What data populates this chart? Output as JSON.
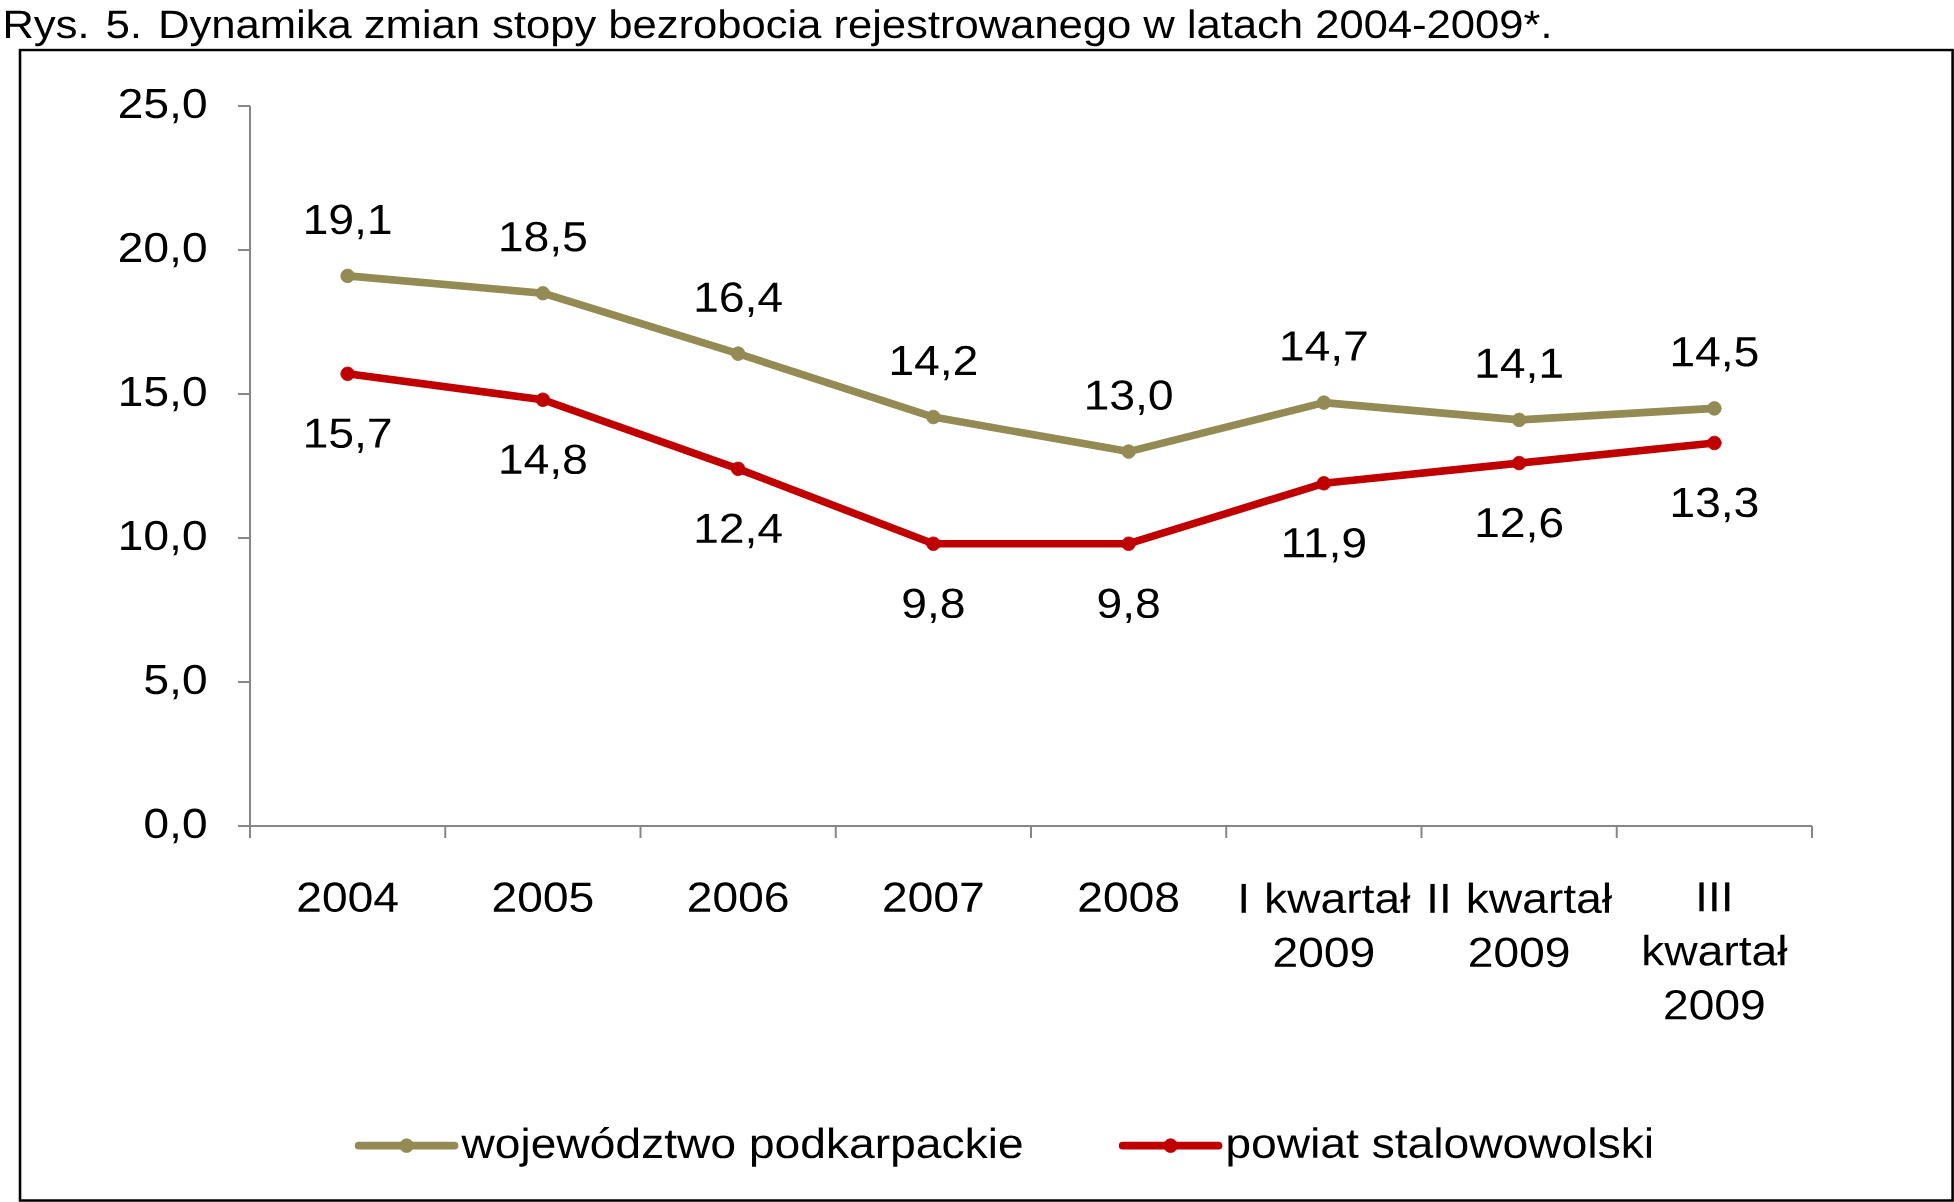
{
  "chart_data": {
    "type": "line",
    "title": "Rys. 5. Dynamika zmian stopy bezrobocia rejestrowanego w latach 2004-2009*.",
    "categories": [
      "2004",
      "2005",
      "2006",
      "2007",
      "2008",
      "I kwartał 2009",
      "II kwartał 2009",
      "III kwartał 2009"
    ],
    "series": [
      {
        "name": "województwo podkarpackie",
        "color": "#948a54",
        "values": [
          19.1,
          18.5,
          16.4,
          14.2,
          13.0,
          14.7,
          14.1,
          14.5
        ],
        "value_labels": [
          "19,1",
          "18,5",
          "16,4",
          "14,2",
          "13,0",
          "14,7",
          "14,1",
          "14,5"
        ]
      },
      {
        "name": "powiat stalowowolski",
        "color": "#c00000",
        "values": [
          15.7,
          14.8,
          12.4,
          9.8,
          9.8,
          11.9,
          12.6,
          13.3
        ],
        "value_labels": [
          "15,7",
          "14,8",
          "12,4",
          "9,8",
          "9,8",
          "11,9",
          "12,6",
          "13,3"
        ]
      }
    ],
    "ylim": [
      0,
      25
    ],
    "yticks": [
      {
        "value": 0,
        "label": "0,0"
      },
      {
        "value": 5,
        "label": "5,0"
      },
      {
        "value": 10,
        "label": "10,0"
      },
      {
        "value": 15,
        "label": "15,0"
      },
      {
        "value": 20,
        "label": "20,0"
      },
      {
        "value": 25,
        "label": "25,0"
      }
    ],
    "legend": "bottom",
    "marker": "circle",
    "line_style": "solid"
  }
}
